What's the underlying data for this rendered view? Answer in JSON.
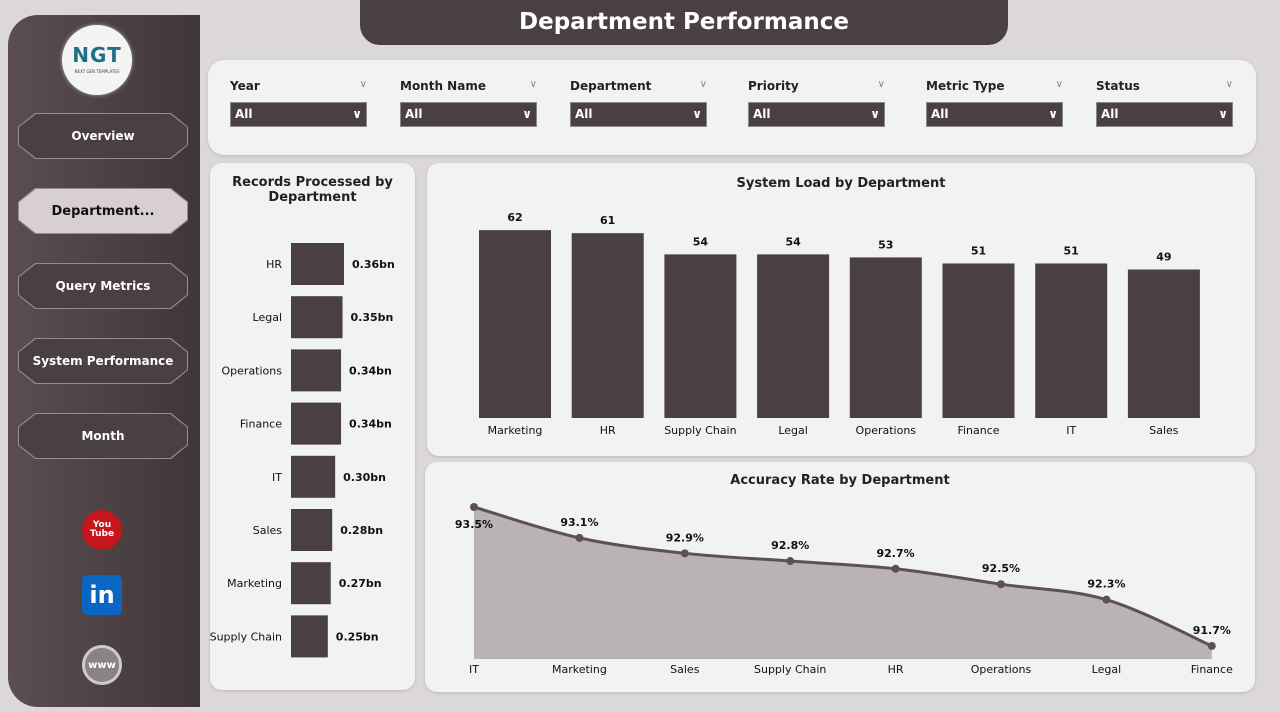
{
  "title": "Department Performance",
  "logo": {
    "text": "NGT",
    "sub": "NEXT GEN TEMPLATES"
  },
  "nav": [
    {
      "label": "Overview"
    },
    {
      "label": "Department..."
    },
    {
      "label": "Query Metrics"
    },
    {
      "label": "System Performance"
    },
    {
      "label": "Month"
    }
  ],
  "social": [
    {
      "icon": "youtube-icon",
      "label": "You Tube"
    },
    {
      "icon": "linkedin-icon",
      "label": "in"
    },
    {
      "icon": "globe-icon",
      "label": "www"
    }
  ],
  "filters": [
    {
      "label": "Year",
      "value": "All"
    },
    {
      "label": "Month Name",
      "value": "All"
    },
    {
      "label": "Department",
      "value": "All"
    },
    {
      "label": "Priority",
      "value": "All"
    },
    {
      "label": "Metric Type",
      "value": "All"
    },
    {
      "label": "Status",
      "value": "All"
    }
  ],
  "colors": {
    "bar": "#4a3f41",
    "area": "#b9b3b3",
    "line": "#5e5152"
  },
  "chart_data": [
    {
      "type": "bar",
      "orientation": "horizontal",
      "title": "Records Processed by Department",
      "categories": [
        "HR",
        "Legal",
        "Operations",
        "Finance",
        "IT",
        "Sales",
        "Marketing",
        "Supply Chain"
      ],
      "values": [
        0.36,
        0.35,
        0.34,
        0.34,
        0.3,
        0.28,
        0.27,
        0.25
      ],
      "labels": [
        "0.36bn",
        "0.35bn",
        "0.34bn",
        "0.34bn",
        "0.30bn",
        "0.28bn",
        "0.27bn",
        "0.25bn"
      ]
    },
    {
      "type": "bar",
      "title": "System Load by Department",
      "categories": [
        "Marketing",
        "HR",
        "Supply Chain",
        "Legal",
        "Operations",
        "Finance",
        "IT",
        "Sales"
      ],
      "values": [
        62,
        61,
        54,
        54,
        53,
        51,
        51,
        49
      ]
    },
    {
      "type": "area",
      "title": "Accuracy Rate by Department",
      "categories": [
        "IT",
        "Marketing",
        "Sales",
        "Supply Chain",
        "HR",
        "Operations",
        "Legal",
        "Finance"
      ],
      "values": [
        93.5,
        93.1,
        92.9,
        92.8,
        92.7,
        92.5,
        92.3,
        91.7
      ],
      "labels": [
        "93.5%",
        "93.1%",
        "92.9%",
        "92.8%",
        "92.7%",
        "92.5%",
        "92.3%",
        "91.7%"
      ]
    }
  ]
}
